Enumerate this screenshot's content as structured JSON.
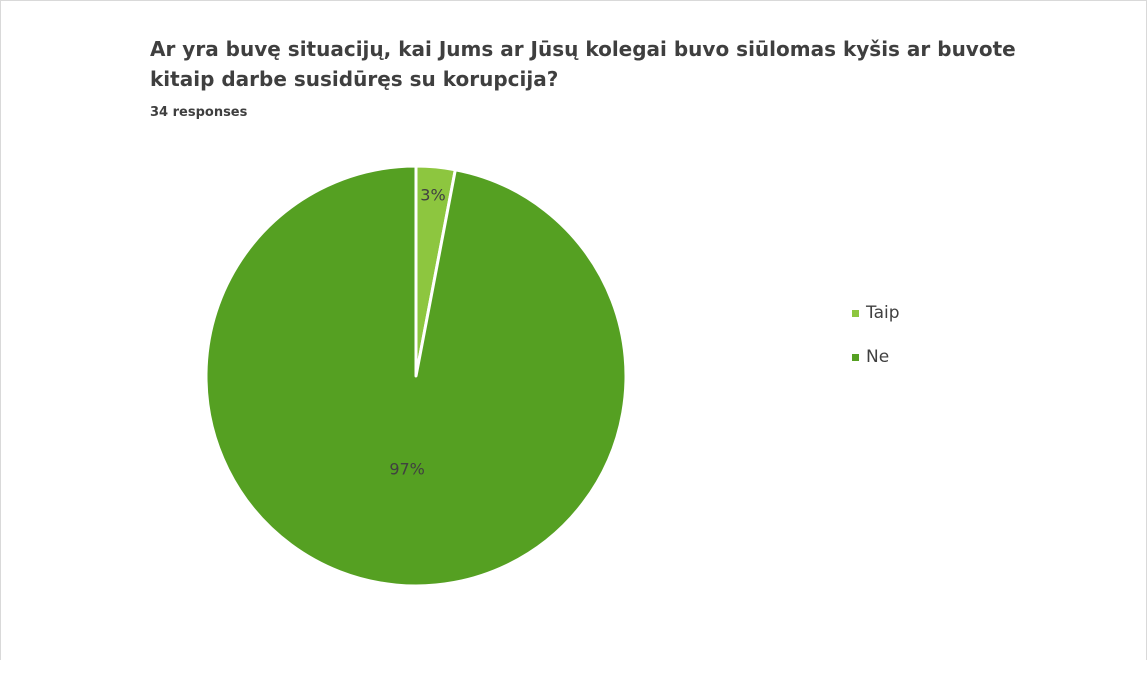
{
  "chart_data": {
    "type": "pie",
    "title": "Ar yra buvę situacijų, kai Jums ar Jūsų kolegai buvo siūlomas kyšis ar buvote kitaip darbe susidūręs su korupcija?",
    "subtitle": "34 responses",
    "categories": [
      "Taip",
      "Ne"
    ],
    "values": [
      3,
      97
    ],
    "labels": [
      "3%",
      "97%"
    ],
    "colors": [
      "#8dc63f",
      "#55a022"
    ],
    "legend_position": "right"
  }
}
